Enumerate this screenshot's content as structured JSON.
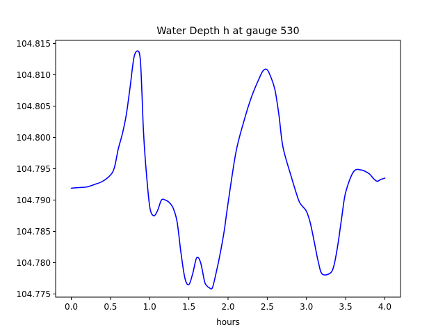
{
  "chart_data": {
    "type": "line",
    "title": "Water Depth h at gauge 530",
    "xlabel": "hours",
    "ylabel": "",
    "xlim": [
      -0.2,
      4.2
    ],
    "ylim": [
      104.7745,
      104.8155
    ],
    "xticks": [
      "0.0",
      "0.5",
      "1.0",
      "1.5",
      "2.0",
      "2.5",
      "3.0",
      "3.5",
      "4.0"
    ],
    "yticks": [
      "104.775",
      "104.780",
      "104.785",
      "104.790",
      "104.795",
      "104.800",
      "104.805",
      "104.810",
      "104.815"
    ],
    "grid": false,
    "series": [
      {
        "color": "#0000ff",
        "x": [
          0.0,
          0.1,
          0.2,
          0.3,
          0.4,
          0.5,
          0.55,
          0.6,
          0.65,
          0.7,
          0.75,
          0.8,
          0.85,
          0.88,
          0.9,
          0.92,
          0.95,
          1.0,
          1.05,
          1.1,
          1.15,
          1.2,
          1.25,
          1.3,
          1.35,
          1.4,
          1.45,
          1.5,
          1.55,
          1.6,
          1.65,
          1.7,
          1.73,
          1.76,
          1.8,
          1.85,
          1.9,
          1.95,
          2.0,
          2.1,
          2.2,
          2.3,
          2.4,
          2.45,
          2.5,
          2.55,
          2.6,
          2.65,
          2.7,
          2.8,
          2.9,
          2.95,
          3.0,
          3.05,
          3.1,
          3.15,
          3.2,
          3.3,
          3.35,
          3.4,
          3.45,
          3.5,
          3.6,
          3.7,
          3.8,
          3.85,
          3.9,
          3.95,
          4.0
        ],
        "y": [
          104.7919,
          104.792,
          104.7921,
          104.7925,
          104.793,
          104.794,
          104.7952,
          104.7982,
          104.8005,
          104.8035,
          104.808,
          104.8128,
          104.8138,
          104.8125,
          104.8075,
          104.8012,
          104.7955,
          104.789,
          104.7875,
          104.7883,
          104.79,
          104.79,
          104.7896,
          104.7887,
          104.7865,
          104.7815,
          104.7775,
          104.7765,
          104.7783,
          104.7808,
          104.78,
          104.777,
          104.7763,
          104.776,
          104.776,
          104.7785,
          104.7815,
          104.785,
          104.7895,
          104.7976,
          104.8025,
          104.8065,
          104.8095,
          104.8107,
          104.8108,
          104.8095,
          104.8075,
          104.8035,
          104.7985,
          104.794,
          104.79,
          104.789,
          104.7882,
          104.7863,
          104.7833,
          104.7802,
          104.7782,
          104.7783,
          104.7795,
          104.7828,
          104.7872,
          104.7912,
          104.7945,
          104.7948,
          104.7942,
          104.7935,
          104.793,
          104.7933,
          104.7935
        ]
      }
    ]
  }
}
